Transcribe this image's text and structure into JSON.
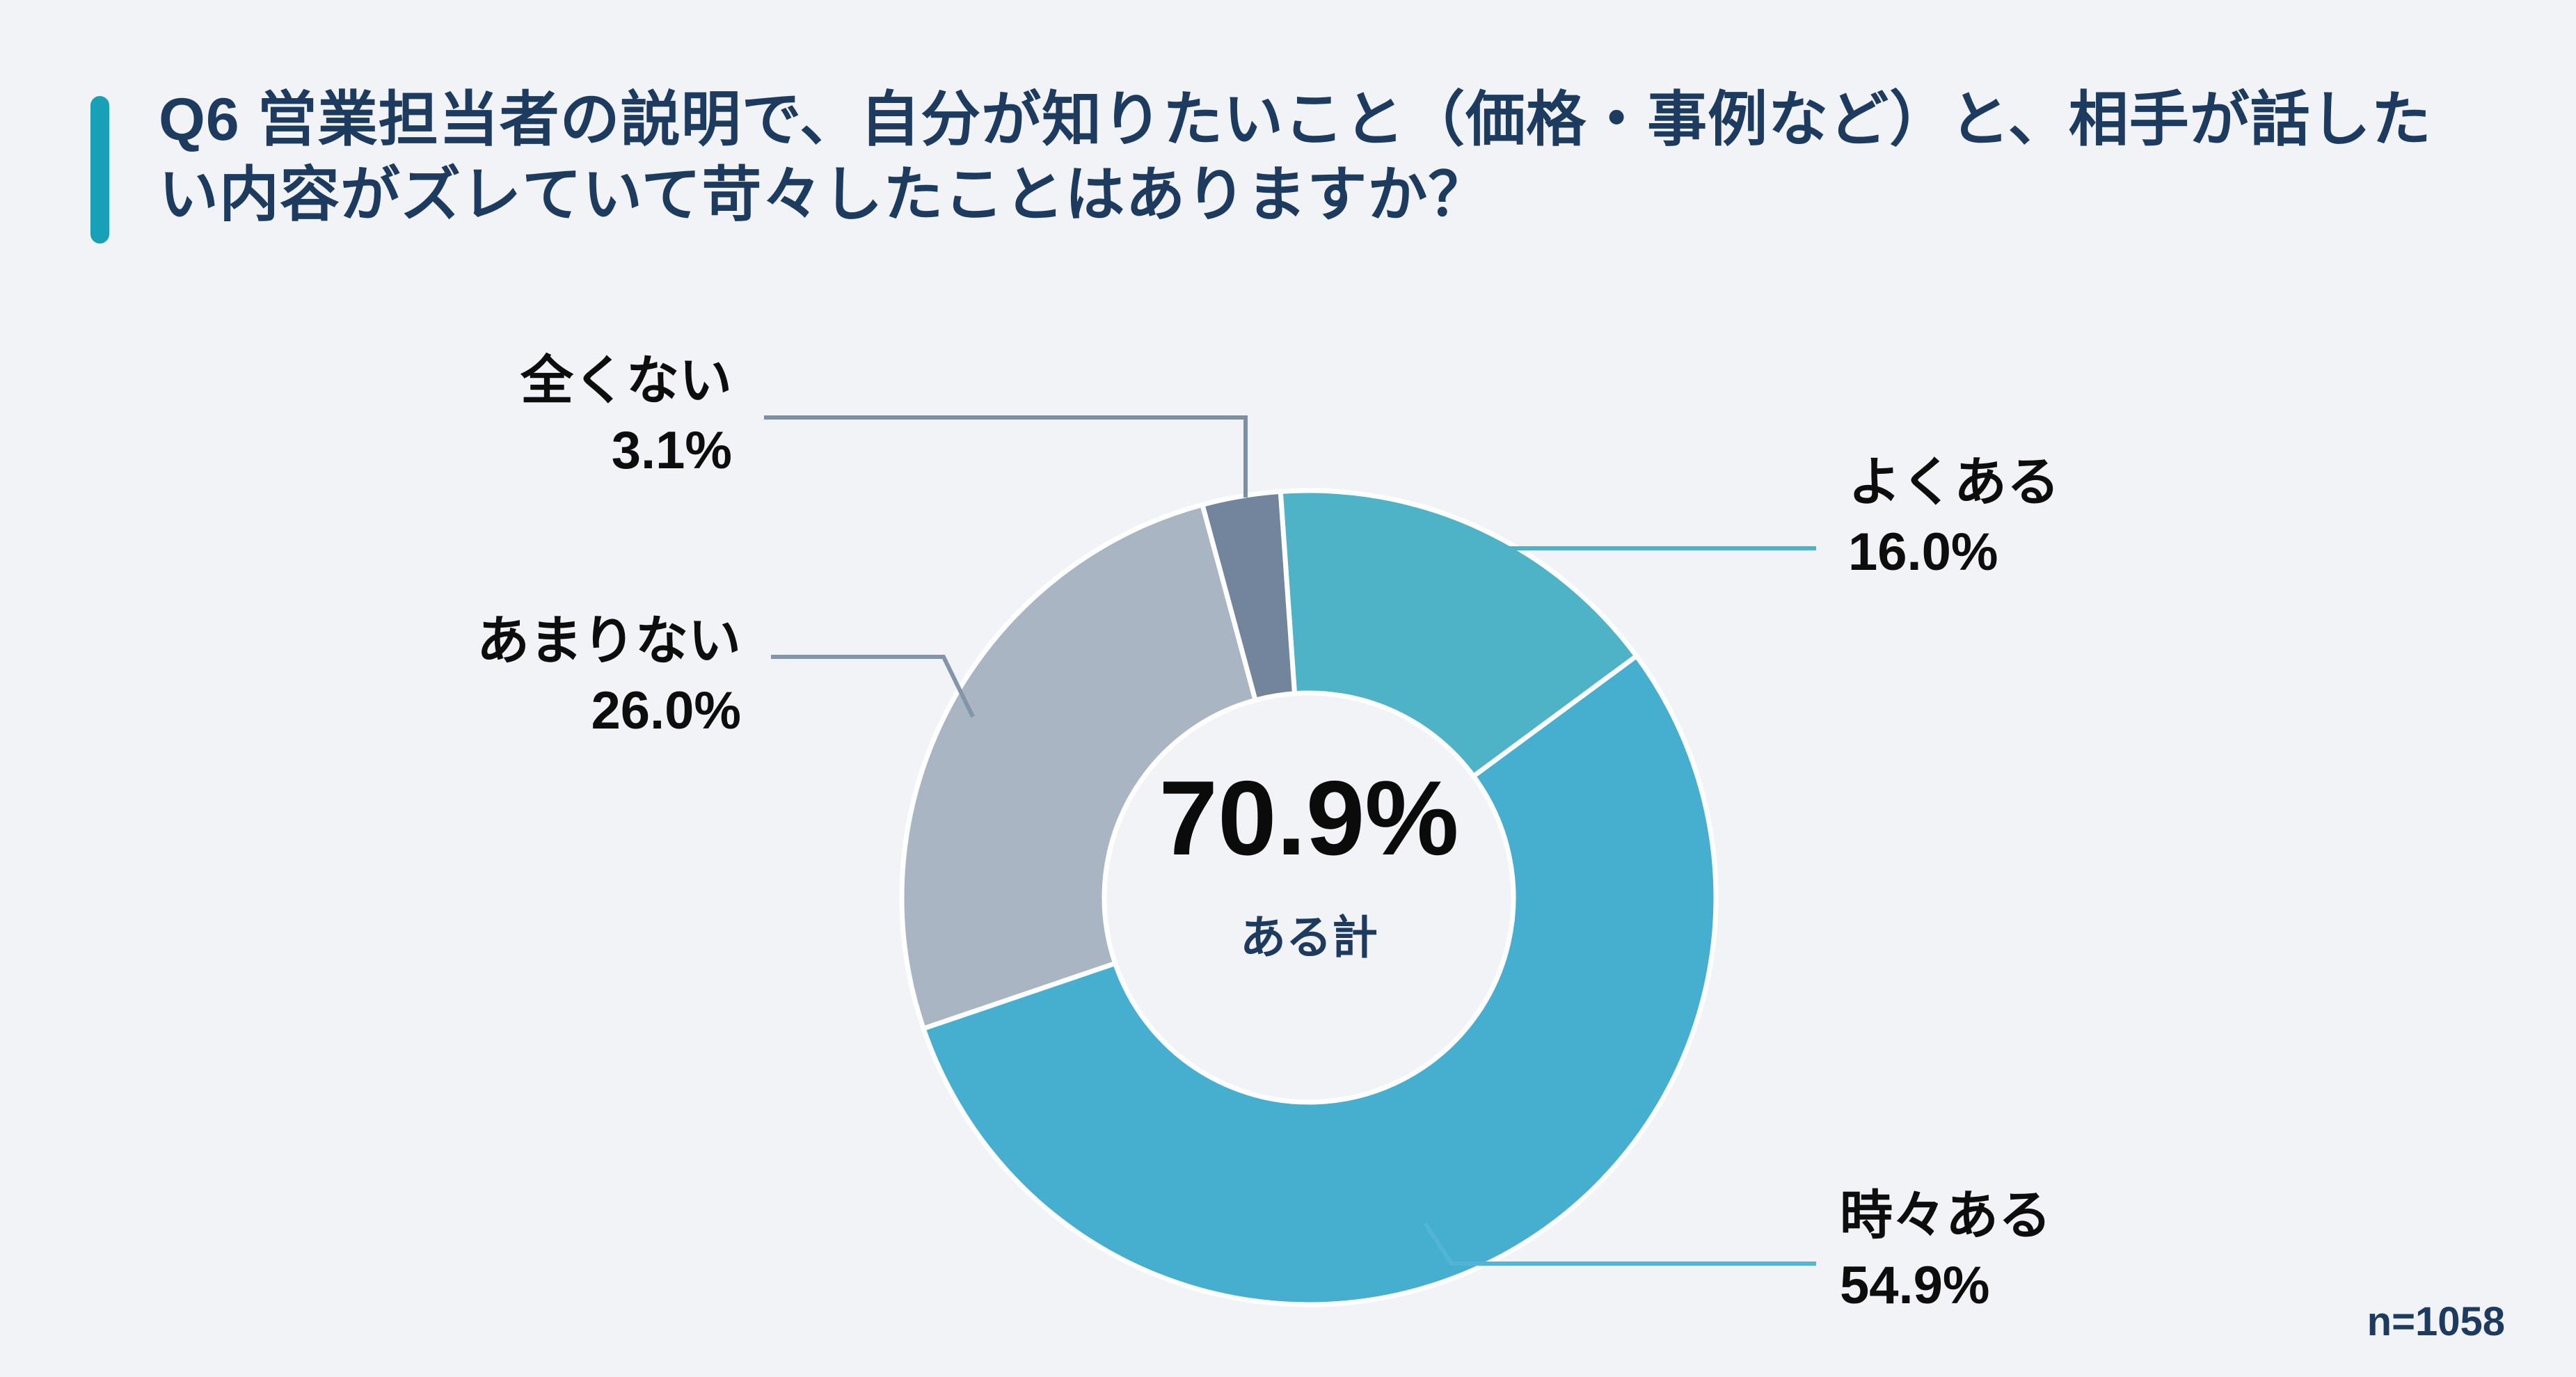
{
  "page": {
    "background_color": "#F1F3F7"
  },
  "header": {
    "accent_color": "#17A0B6",
    "title_color": "#1D3B5E",
    "title_line1": "Q6 営業担当者の説明で、自分が知りたいこと（価格・事例など）と、相手が話した",
    "title_line2": "い内容がズレていて苛々したことはありますか？"
  },
  "chart_data": {
    "type": "pie",
    "subtype": "donut",
    "title": "Q6 営業担当者の説明で、自分が知りたいこと（価格・事例など）と、相手が話したい内容がズレていて苛々したことはありますか？",
    "start_angle_deg": -4,
    "clockwise": true,
    "legend_position": "callout-labels",
    "center": {
      "value": "70.9%",
      "label": "ある計"
    },
    "sample_size_label": "n=1058",
    "segments": [
      {
        "label": "よくある",
        "value": 16.0,
        "display": "16.0%",
        "color": "#4FB3C8",
        "leader_color": "#4FB3C8"
      },
      {
        "label": "時々ある",
        "value": 54.9,
        "display": "54.9%",
        "color": "#46AECE",
        "leader_color": "#52B5D7"
      },
      {
        "label": "あまりない",
        "value": 26.0,
        "display": "26.0%",
        "color": "#A9B5C3",
        "leader_color": "#8495AA"
      },
      {
        "label": "全くない",
        "value": 3.1,
        "display": "3.1%",
        "color": "#73849D",
        "leader_color": "#7D8FA4"
      }
    ]
  }
}
